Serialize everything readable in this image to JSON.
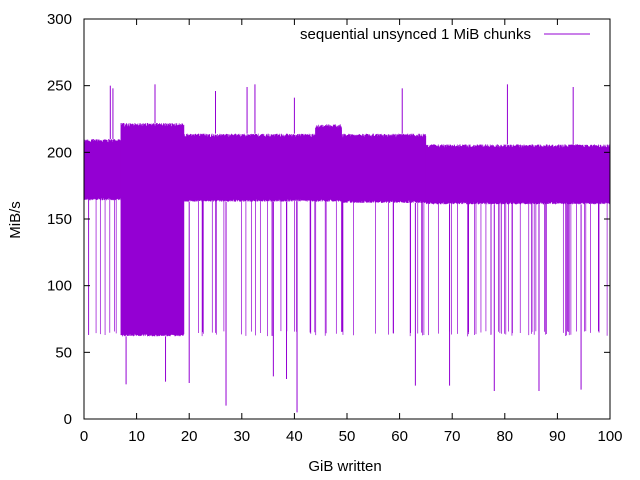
{
  "chart_data": {
    "type": "line",
    "title": "",
    "xlabel": "GiB written",
    "ylabel": "MiB/s",
    "xlim": [
      0,
      100
    ],
    "ylim": [
      0,
      300
    ],
    "xticks": [
      0,
      10,
      20,
      30,
      40,
      50,
      60,
      70,
      80,
      90,
      100
    ],
    "yticks": [
      0,
      50,
      100,
      150,
      200,
      250,
      300
    ],
    "xtick_labels": [
      "0",
      "10",
      "20",
      "30",
      "40",
      "50",
      "60",
      "70",
      "80",
      "90",
      "100"
    ],
    "ytick_labels": [
      "0",
      "50",
      "100",
      "150",
      "200",
      "250",
      "300"
    ],
    "grid": false,
    "legend_position": "top-right",
    "series": [
      {
        "name": "sequential unsynced 1 MiB chunks",
        "color": "#9400d3",
        "segments": [
          {
            "x": [
              0,
              7
            ],
            "y_low": 164,
            "y_high": 210,
            "dip_low": 62
          },
          {
            "x": [
              7,
              19
            ],
            "y_low": 62,
            "y_high": 222,
            "dip_low": 60
          },
          {
            "x": [
              19,
              44
            ],
            "y_low": 163,
            "y_high": 214,
            "dip_low": 62
          },
          {
            "x": [
              44,
              49
            ],
            "y_low": 163,
            "y_high": 221,
            "dip_low": 62
          },
          {
            "x": [
              49,
              65
            ],
            "y_low": 162,
            "y_high": 214,
            "dip_low": 62
          },
          {
            "x": [
              65,
              100
            ],
            "y_low": 161,
            "y_high": 206,
            "dip_low": 62
          }
        ],
        "spikes_high": [
          {
            "x": 5,
            "y": 250
          },
          {
            "x": 5.5,
            "y": 248
          },
          {
            "x": 13.5,
            "y": 251
          },
          {
            "x": 25,
            "y": 246
          },
          {
            "x": 31,
            "y": 249
          },
          {
            "x": 32.5,
            "y": 251
          },
          {
            "x": 40,
            "y": 241
          },
          {
            "x": 60.5,
            "y": 248
          },
          {
            "x": 80.5,
            "y": 251
          },
          {
            "x": 93,
            "y": 249
          }
        ],
        "spikes_low": [
          {
            "x": 8,
            "y": 26
          },
          {
            "x": 15.5,
            "y": 28
          },
          {
            "x": 20,
            "y": 27
          },
          {
            "x": 27,
            "y": 10
          },
          {
            "x": 36,
            "y": 32
          },
          {
            "x": 38.5,
            "y": 30
          },
          {
            "x": 40.5,
            "y": 5
          },
          {
            "x": 63,
            "y": 25
          },
          {
            "x": 69.5,
            "y": 25
          },
          {
            "x": 78,
            "y": 21
          },
          {
            "x": 86.5,
            "y": 21
          },
          {
            "x": 94.5,
            "y": 22
          }
        ]
      }
    ]
  }
}
